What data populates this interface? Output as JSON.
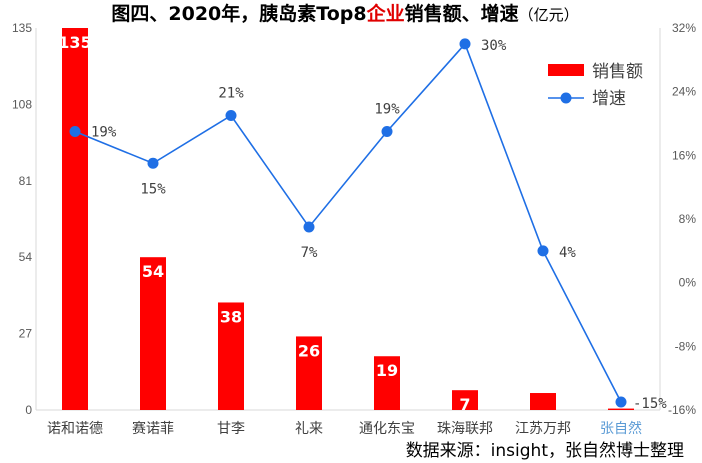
{
  "chart_data": {
    "type": "bar+line",
    "title_parts": [
      "图四、2020年，胰岛素Top8",
      "企业",
      "销售额、增速"
    ],
    "title_unit": "（亿元）",
    "categories": [
      "诺和诺德",
      "赛诺菲",
      "甘李",
      "礼来",
      "通化东宝",
      "珠海联邦",
      "江苏万邦",
      "张自然"
    ],
    "series": [
      {
        "name": "销售额",
        "type": "bar",
        "axis": "left",
        "values": [
          135,
          54,
          38,
          26,
          19,
          7,
          6,
          0.5
        ],
        "labels": [
          "135",
          "54",
          "38",
          "26",
          "19",
          "7",
          "",
          ""
        ],
        "color": "#ff0000"
      },
      {
        "name": "增速",
        "type": "line",
        "axis": "right",
        "values": [
          19,
          15,
          21,
          7,
          19,
          30,
          4,
          -15
        ],
        "labels": [
          "19%",
          "15%",
          "21%",
          "7%",
          "19%",
          "30%",
          "4%",
          "-15%"
        ],
        "color": "#1f6fe5"
      }
    ],
    "y_left": {
      "min": 0,
      "max": 135,
      "ticks": [
        "0",
        "27",
        "54",
        "81",
        "108",
        "135"
      ]
    },
    "y_right": {
      "min": -16,
      "max": 32,
      "ticks": [
        "-16%",
        "-8%",
        "0%",
        "8%",
        "16%",
        "24%",
        "32%"
      ]
    },
    "legend": {
      "position": "top-right",
      "items": [
        "销售额",
        "增速"
      ]
    },
    "grid": false,
    "source": "数据来源：insight，张自然博士整理"
  }
}
